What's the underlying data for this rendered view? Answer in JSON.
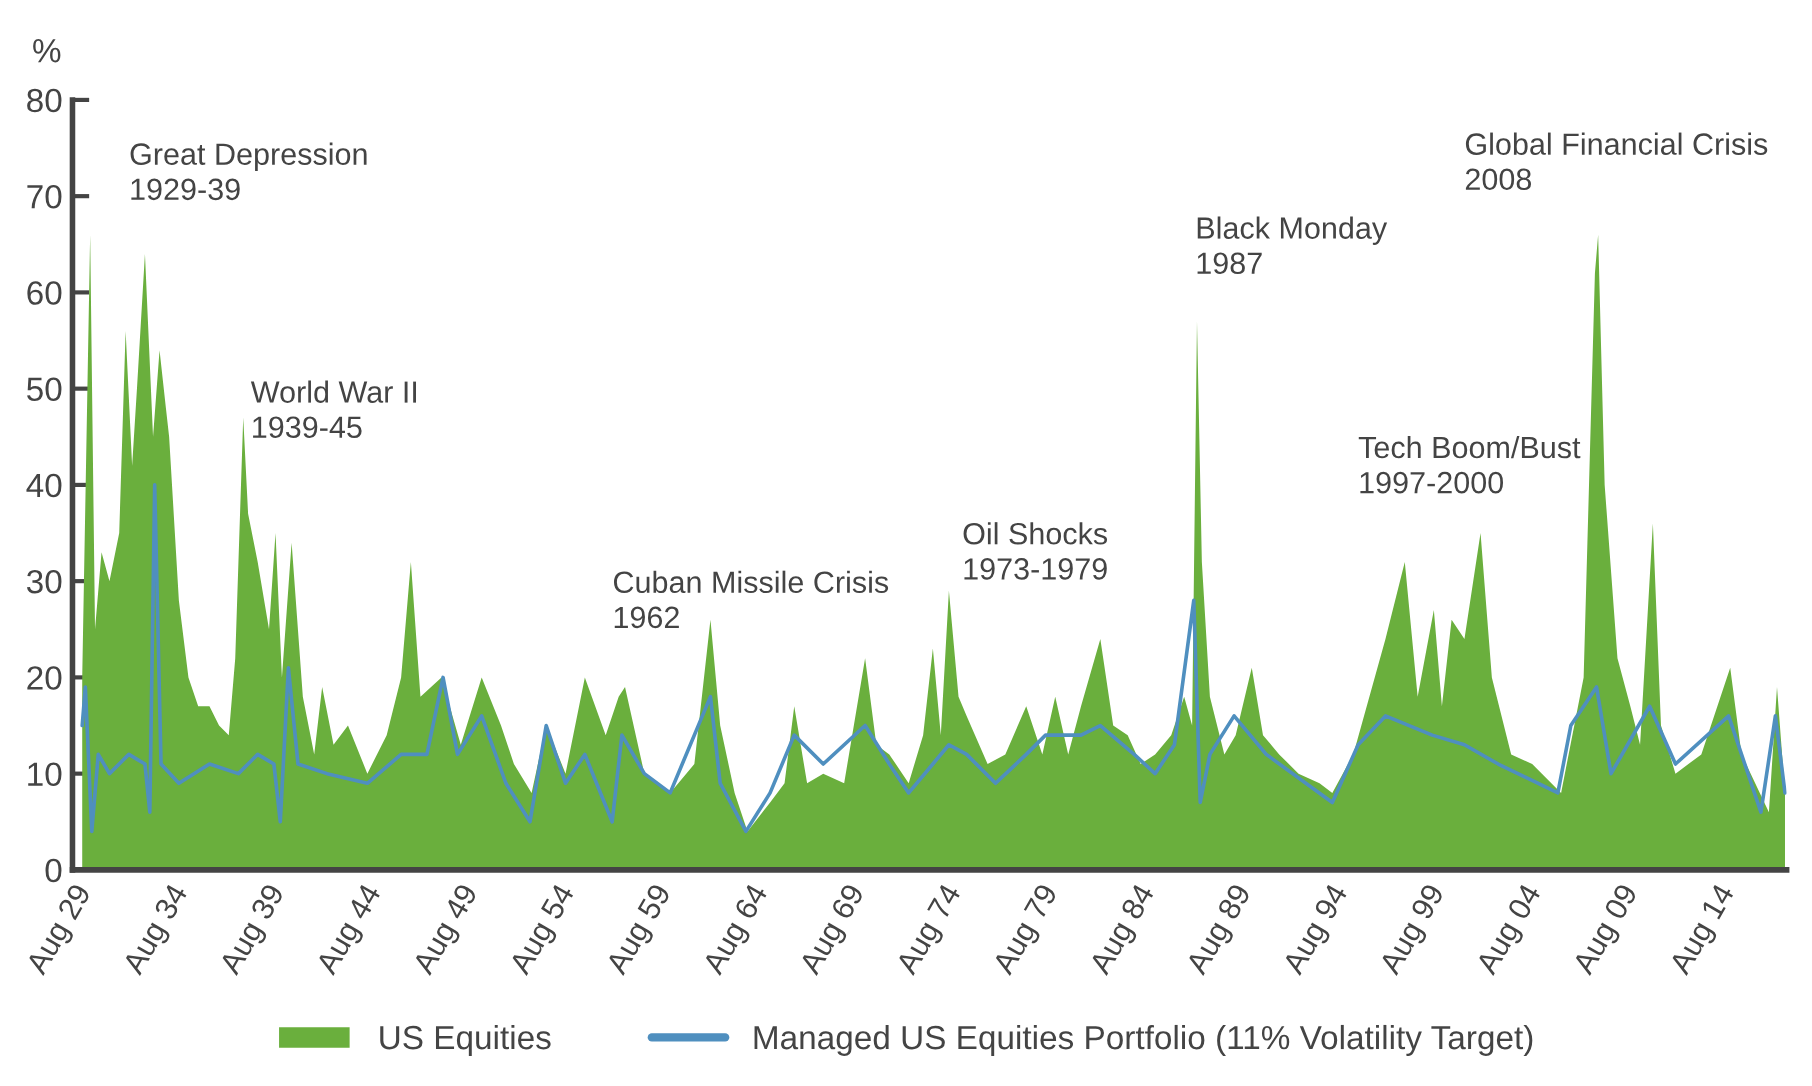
{
  "chart_data": {
    "type": "area",
    "ylabel": "%",
    "xlim": [
      "1929-08",
      "2018-04"
    ],
    "xticks": [
      {
        "value": "1929-08",
        "label": "Aug 29"
      },
      {
        "value": "1934-08",
        "label": "Aug 34"
      },
      {
        "value": "1939-08",
        "label": "Aug 39"
      },
      {
        "value": "1944-08",
        "label": "Aug 44"
      },
      {
        "value": "1949-08",
        "label": "Aug 49"
      },
      {
        "value": "1954-08",
        "label": "Aug 54"
      },
      {
        "value": "1959-08",
        "label": "Aug 59"
      },
      {
        "value": "1964-08",
        "label": "Aug 64"
      },
      {
        "value": "1969-08",
        "label": "Aug 69"
      },
      {
        "value": "1974-08",
        "label": "Aug 74"
      },
      {
        "value": "1979-08",
        "label": "Aug 79"
      },
      {
        "value": "1984-08",
        "label": "Aug 84"
      },
      {
        "value": "1989-08",
        "label": "Aug 89"
      },
      {
        "value": "1994-08",
        "label": "Aug 94"
      },
      {
        "value": "1999-08",
        "label": "Aug 99"
      },
      {
        "value": "2004-08",
        "label": "Aug 04"
      },
      {
        "value": "2009-08",
        "label": "Aug 09"
      },
      {
        "value": "2014-08",
        "label": "Aug 14"
      }
    ],
    "ylim": [
      0,
      80
    ],
    "yticks": [
      0,
      10,
      20,
      30,
      40,
      50,
      60,
      70,
      80
    ],
    "grid": false,
    "legend": "bottom",
    "series": [
      {
        "name": "US Equities",
        "color": "#6aaf3d",
        "x": [
          "1930-02",
          "1930-07",
          "1930-10",
          "1931-02",
          "1931-07",
          "1932-01",
          "1932-05",
          "1932-09",
          "1932-12",
          "1933-05",
          "1933-10",
          "1934-02",
          "1934-06",
          "1934-08",
          "1935-02",
          "1935-08",
          "1936-02",
          "1936-09",
          "1937-03",
          "1937-09",
          "1938-01",
          "1938-06",
          "1938-09",
          "1939-03",
          "1939-10",
          "1940-02",
          "1940-06",
          "1940-12",
          "1941-07",
          "1942-02",
          "1942-07",
          "1943-02",
          "1943-11",
          "1944-11",
          "1945-11",
          "1946-08",
          "1947-02",
          "1947-08",
          "1948-09",
          "1949-09",
          "1950-10",
          "1951-10",
          "1952-06",
          "1953-05",
          "1954-02",
          "1955-02",
          "1956-02",
          "1957-03",
          "1957-11",
          "1958-03",
          "1959-03",
          "1960-07",
          "1961-10",
          "1962-08",
          "1963-02",
          "1963-11",
          "1964-07",
          "1965-09",
          "1966-06",
          "1966-12",
          "1967-08",
          "1968-06",
          "1969-07",
          "1970-08",
          "1971-03",
          "1971-11",
          "1972-11",
          "1973-08",
          "1974-02",
          "1974-07",
          "1974-12",
          "1975-06",
          "1975-11",
          "1976-12",
          "1977-11",
          "1978-12",
          "1979-10",
          "1980-06",
          "1981-02",
          "1981-10",
          "1982-10",
          "1983-06",
          "1984-03",
          "1984-11",
          "1985-08",
          "1986-06",
          "1987-02",
          "1987-07",
          "1987-10",
          "1988-01",
          "1988-06",
          "1989-03",
          "1989-10",
          "1990-08",
          "1991-03",
          "1992-01",
          "1993-01",
          "1994-02",
          "1994-10",
          "1995-11",
          "1997-07",
          "1998-07",
          "1999-03",
          "2000-01",
          "2000-06",
          "2000-12",
          "2001-08",
          "2002-06",
          "2003-01",
          "2004-01",
          "2005-02",
          "2006-08",
          "2007-10",
          "2008-05",
          "2008-07",
          "2008-11",
          "2009-07",
          "2010-03",
          "2010-09",
          "2011-05",
          "2011-10",
          "2012-07",
          "2013-11",
          "2015-05",
          "2015-12",
          "2017-05",
          "2017-10",
          "2018-03"
        ],
        "values": [
          20,
          66,
          25,
          33,
          30,
          35,
          56,
          42,
          50,
          64,
          45,
          54,
          48,
          45,
          28,
          20,
          17,
          17,
          15,
          14,
          22,
          47,
          37,
          32,
          25,
          35,
          20,
          34,
          18,
          12,
          19,
          13,
          15,
          10,
          14,
          20,
          32,
          18,
          20,
          13,
          20,
          15,
          11,
          8,
          15,
          10,
          20,
          14,
          18,
          19,
          10,
          8,
          11,
          26,
          15,
          8,
          4,
          7,
          9,
          17,
          9,
          10,
          9,
          22,
          13,
          12,
          9,
          14,
          23,
          14,
          29,
          18,
          16,
          11,
          12,
          17,
          12,
          18,
          12,
          17,
          24,
          15,
          14,
          11,
          12,
          14,
          18,
          15,
          57,
          32,
          18,
          12,
          14,
          21,
          14,
          12,
          10,
          9,
          8,
          12,
          24,
          32,
          18,
          27,
          17,
          26,
          24,
          35,
          20,
          12,
          11,
          8,
          20,
          62,
          66,
          40,
          22,
          17,
          13,
          36,
          15,
          10,
          12,
          21,
          12,
          6,
          19,
          8
        ]
      },
      {
        "name": "Managed US Equities Portfolio (11% Volatility Target)",
        "type": "line",
        "color": "#4f8fbf",
        "x": [
          "1930-02",
          "1930-04",
          "1930-08",
          "1930-12",
          "1931-07",
          "1932-07",
          "1933-05",
          "1933-08",
          "1933-11",
          "1934-03",
          "1935-02",
          "1936-09",
          "1938-03",
          "1939-03",
          "1940-01",
          "1940-05",
          "1940-10",
          "1941-04",
          "1942-10",
          "1944-11",
          "1946-08",
          "1947-12",
          "1948-10",
          "1949-07",
          "1950-10",
          "1952-01",
          "1953-04",
          "1954-02",
          "1955-02",
          "1956-02",
          "1957-07",
          "1958-01",
          "1959-03",
          "1960-07",
          "1962-08",
          "1963-02",
          "1964-06",
          "1965-09",
          "1966-12",
          "1968-06",
          "1970-08",
          "1971-11",
          "1972-11",
          "1974-02",
          "1974-12",
          "1975-11",
          "1977-05",
          "1978-12",
          "1979-12",
          "1981-10",
          "1982-10",
          "1984-07",
          "1985-08",
          "1986-08",
          "1987-08",
          "1987-12",
          "1988-06",
          "1989-09",
          "1991-05",
          "1994-10",
          "1996-02",
          "1997-07",
          "1999-12",
          "2001-08",
          "2003-05",
          "2006-06",
          "2007-02",
          "2008-06",
          "2009-03",
          "2011-03",
          "2012-07",
          "2015-04",
          "2016-12",
          "2017-09",
          "2018-03"
        ],
        "values": [
          15,
          19,
          4,
          12,
          10,
          12,
          11,
          6,
          40,
          11,
          9,
          11,
          10,
          12,
          11,
          5,
          21,
          11,
          10,
          9,
          12,
          12,
          20,
          12,
          16,
          9,
          5,
          15,
          9,
          12,
          5,
          14,
          10,
          8,
          18,
          9,
          4,
          8,
          14,
          11,
          15,
          11,
          8,
          11,
          13,
          12,
          9,
          12,
          14,
          14,
          15,
          12,
          10,
          13,
          28,
          7,
          12,
          16,
          12,
          7,
          13,
          16,
          14,
          13,
          11,
          8,
          15,
          19,
          10,
          17,
          11,
          16,
          6,
          16,
          8
        ]
      }
    ],
    "annotations": [
      "Great Depression\n1929-39",
      "World War II\n1939-45",
      "Cuban Missile Crisis\n1962",
      "Oil Shocks\n1973-1979",
      "Black Monday\n1987",
      "Tech Boom/Bust\n1997-2000",
      "Global Financial Crisis\n2008"
    ]
  }
}
